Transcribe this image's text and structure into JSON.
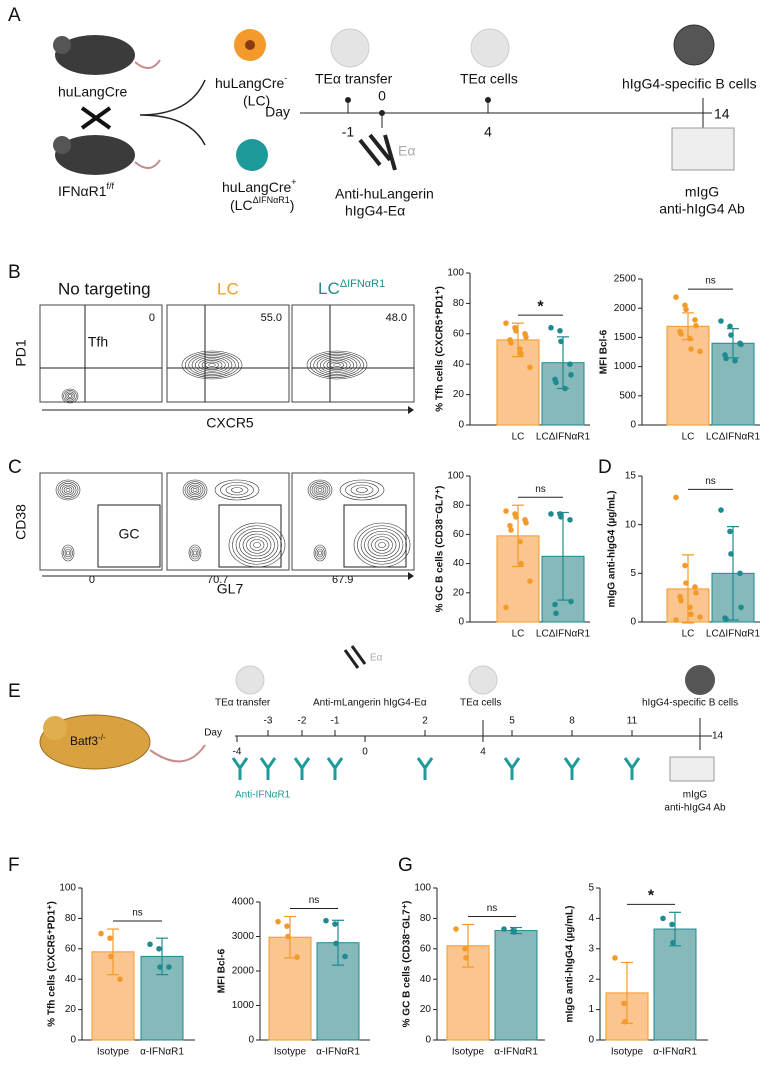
{
  "chart_data": [
    {
      "type": "bar",
      "ylabel": "% Tfh cells (CXCR5⁺PD1⁺)",
      "categories": [
        "LC",
        "LCΔIFNαR1"
      ],
      "values": [
        56,
        41
      ],
      "errors": [
        11,
        17
      ],
      "points": [
        [
          67,
          64,
          62,
          60,
          58,
          56,
          54,
          50,
          47,
          38
        ],
        [
          64,
          62,
          55,
          40,
          33,
          30,
          28,
          24
        ]
      ],
      "colors": [
        "#fbc590",
        "#86b9ba"
      ],
      "point_colors": [
        "#f39a2a",
        "#1f8a8f"
      ],
      "ylim": [
        0,
        100
      ],
      "yticks": [
        0,
        20,
        40,
        60,
        80,
        100
      ],
      "annotation": "*"
    },
    {
      "type": "bar",
      "ylabel": "MFI Bcl-6",
      "categories": [
        "LC",
        "LCΔIFNαR1"
      ],
      "values": [
        1690,
        1400
      ],
      "errors": [
        230,
        250
      ],
      "points": [
        [
          2190,
          2050,
          1980,
          1800,
          1700,
          1600,
          1560,
          1480,
          1300,
          1260
        ],
        [
          1780,
          1690,
          1540,
          1400,
          1380,
          1200,
          1140,
          1100
        ]
      ],
      "colors": [
        "#fbc590",
        "#86b9ba"
      ],
      "point_colors": [
        "#f39a2a",
        "#1f8a8f"
      ],
      "ylim": [
        0,
        2500
      ],
      "yticks": [
        0,
        500,
        1000,
        1500,
        2000,
        2500
      ],
      "annotation": "ns"
    },
    {
      "type": "bar",
      "ylabel": "% GC B cells (CD38⁻GL7⁺)",
      "categories": [
        "LC",
        "LCΔIFNαR1"
      ],
      "values": [
        59,
        45
      ],
      "errors": [
        21,
        30
      ],
      "points": [
        [
          76,
          74,
          72,
          70,
          68,
          66,
          63,
          55,
          40,
          28,
          10
        ],
        [
          74,
          74,
          72,
          70,
          14,
          12,
          6
        ]
      ],
      "colors": [
        "#fbc590",
        "#86b9ba"
      ],
      "point_colors": [
        "#f39a2a",
        "#1f8a8f"
      ],
      "ylim": [
        0,
        100
      ],
      "yticks": [
        0,
        20,
        40,
        60,
        80,
        100
      ],
      "annotation": "ns"
    },
    {
      "type": "bar",
      "ylabel": "mIgG anti-hIgG4 (µg/mL)",
      "categories": [
        "LC",
        "LCΔIFNαR1"
      ],
      "values": [
        3.4,
        5.0
      ],
      "errors": [
        3.5,
        4.8
      ],
      "points": [
        [
          12.8,
          5.8,
          4,
          3.6,
          3,
          2.6,
          2.2,
          1.5,
          0.8,
          0.5,
          0.2
        ],
        [
          11.5,
          9.3,
          7,
          5,
          1.5,
          0.4,
          0.3
        ]
      ],
      "colors": [
        "#fbc590",
        "#86b9ba"
      ],
      "point_colors": [
        "#f39a2a",
        "#1f8a8f"
      ],
      "ylim": [
        0,
        15
      ],
      "yticks": [
        0,
        5,
        10,
        15
      ],
      "annotation": "ns"
    },
    {
      "type": "bar",
      "ylabel": "% Tfh cells (CXCR5⁺PD1⁺)",
      "categories": [
        "Isotype",
        "α-IFNαR1"
      ],
      "values": [
        58,
        55
      ],
      "errors": [
        15,
        12
      ],
      "points": [
        [
          70,
          67,
          55,
          40
        ],
        [
          63,
          60,
          48,
          48
        ]
      ],
      "colors": [
        "#fbc590",
        "#86b9ba"
      ],
      "point_colors": [
        "#f39a2a",
        "#1f8a8f"
      ],
      "ylim": [
        0,
        100
      ],
      "yticks": [
        0,
        20,
        40,
        60,
        80,
        100
      ],
      "annotation": "ns"
    },
    {
      "type": "bar",
      "ylabel": "MFI Bcl-6",
      "categories": [
        "Isotype",
        "α-IFNαR1"
      ],
      "values": [
        2980,
        2820
      ],
      "errors": [
        600,
        650
      ],
      "points": [
        [
          3430,
          3300,
          3000,
          2400
        ],
        [
          3460,
          3360,
          2800,
          2420
        ]
      ],
      "colors": [
        "#fbc590",
        "#86b9ba"
      ],
      "point_colors": [
        "#f39a2a",
        "#1f8a8f"
      ],
      "ylim": [
        0,
        4000
      ],
      "yticks": [
        0,
        1000,
        2000,
        3000,
        4000
      ],
      "annotation": "ns"
    },
    {
      "type": "bar",
      "ylabel": "% GC B cells (CD38⁻GL7⁺)",
      "categories": [
        "Isotype",
        "α-IFNαR1"
      ],
      "values": [
        62,
        72
      ],
      "errors": [
        14,
        2
      ],
      "points": [
        [
          73,
          60,
          54
        ],
        [
          73,
          72,
          71
        ]
      ],
      "colors": [
        "#fbc590",
        "#86b9ba"
      ],
      "point_colors": [
        "#f39a2a",
        "#1f8a8f"
      ],
      "ylim": [
        0,
        100
      ],
      "yticks": [
        0,
        20,
        40,
        60,
        80,
        100
      ],
      "annotation": "ns"
    },
    {
      "type": "bar",
      "ylabel": "mIgG anti-hIgG4 (µg/mL)",
      "categories": [
        "Isotype",
        "α-IFNαR1"
      ],
      "values": [
        1.55,
        3.65
      ],
      "errors": [
        1.0,
        0.55
      ],
      "points": [
        [
          2.7,
          1.2,
          0.6
        ],
        [
          4.0,
          3.8,
          3.2
        ]
      ],
      "colors": [
        "#fbc590",
        "#86b9ba"
      ],
      "point_colors": [
        "#f39a2a",
        "#1f8a8f"
      ],
      "ylim": [
        0,
        5
      ],
      "yticks": [
        0,
        1,
        2,
        3,
        4,
        5
      ],
      "annotation": "*"
    }
  ],
  "diagram": {
    "panel_labels": [
      "A",
      "B",
      "C",
      "D",
      "E",
      "F",
      "G"
    ],
    "a": {
      "mouse1": "huLangCre",
      "mouse2": {
        "text": "IFNαR1",
        "sup": "f/f"
      },
      "cell1": {
        "text": "huLangCre",
        "sup": "-"
      },
      "cell1_sub": "(LC)",
      "cell2": {
        "text": "huLangCre",
        "sup": "+"
      },
      "cell2_sub": {
        "text": "(LC",
        "sup": "ΔIFNαR1",
        "end": ")"
      },
      "transfer": "TEα transfer",
      "tea_cells": "TEα cells",
      "b_cells": "hIgG4-specific B cells",
      "day": "Day",
      "days": [
        "-1",
        "0",
        "4",
        "14"
      ],
      "ea": "Eα",
      "antibody": [
        "Anti-huLangerin",
        "hIgG4-Eα"
      ],
      "readout": [
        "mIgG",
        "anti-hIgG4 Ab"
      ]
    },
    "b": {
      "headers": [
        "No targeting",
        "LC"
      ],
      "header3": {
        "text": "LC",
        "sup": "ΔIFNαR1"
      },
      "ylabel": "PD1",
      "xlabel": "CXCR5",
      "gate": "Tfh",
      "numbers": [
        "0",
        "55.0",
        "48.0"
      ]
    },
    "c": {
      "ylabel": "CD38",
      "xlabel": "GL7",
      "gate": "GC",
      "numbers": [
        "0",
        "70.7",
        "67.9"
      ]
    },
    "e": {
      "mouse": {
        "text": "Batf3",
        "sup": "-/-"
      },
      "transfer": "TEα transfer",
      "antibody": "Anti-mLangerin hIgG4-Eα",
      "ea": "Eα",
      "tea_cells": "TEα cells",
      "b_cells": "hIgG4-specific B cells",
      "day": "Day",
      "days": [
        "-4",
        "-3",
        "-2",
        "-1",
        "0",
        "2",
        "4",
        "5",
        "8",
        "11",
        "14"
      ],
      "treatment": "Anti-IFNαR1",
      "readout": [
        "mIgG",
        "anti-hIgG4 Ab"
      ]
    }
  }
}
